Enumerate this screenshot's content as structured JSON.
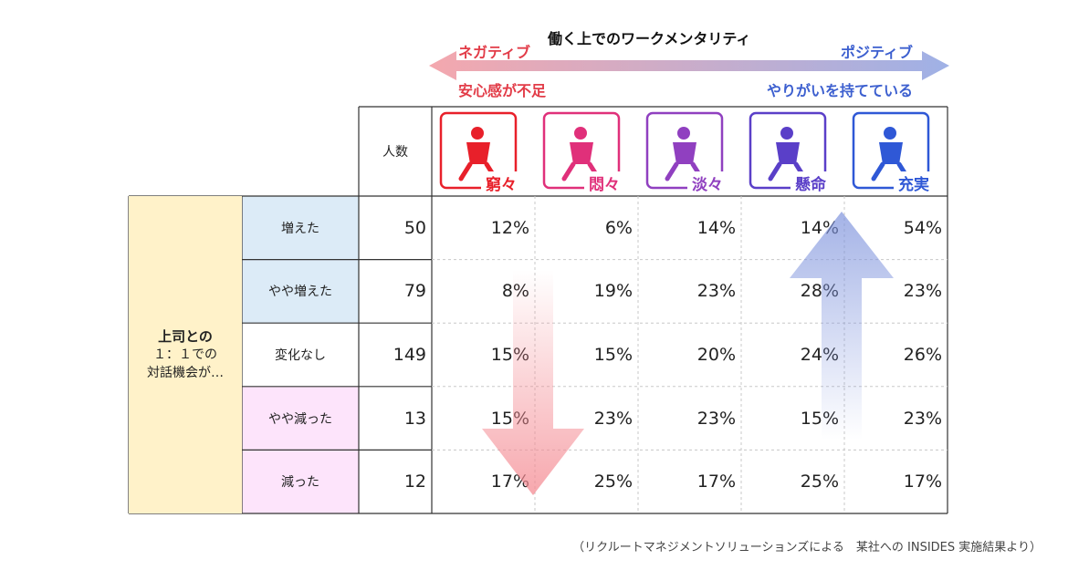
{
  "chart_data": {
    "type": "table",
    "title": "働く上でのワークメンタリティ",
    "scale": {
      "left_label": "ネガティブ",
      "left_sublabel": "安心感が不足",
      "right_label": "ポジティブ",
      "right_sublabel": "やりがいを持てている",
      "left_color": "#f4a8ae",
      "right_color": "#9fb1e6"
    },
    "count_header": "人数",
    "columns": [
      {
        "label": "窮々",
        "color": "#e8202a",
        "icon": "despair-figure-icon"
      },
      {
        "label": "悶々",
        "color": "#e0307a",
        "icon": "worried-figure-icon"
      },
      {
        "label": "淡々",
        "color": "#9040c0",
        "icon": "calm-figure-icon"
      },
      {
        "label": "懸命",
        "color": "#5a3fc8",
        "icon": "striving-figure-icon"
      },
      {
        "label": "充実",
        "color": "#2f58d6",
        "icon": "fulfilled-figure-icon"
      }
    ],
    "group_label": [
      "上司との",
      "１：１での",
      "対話機会が…"
    ],
    "rows": [
      {
        "label": "増えた",
        "bg": "#dcebf7",
        "count": "50",
        "values": [
          "12%",
          "6%",
          "14%",
          "14%",
          "54%"
        ]
      },
      {
        "label": "やや増えた",
        "bg": "#dcebf7",
        "count": "79",
        "values": [
          "8%",
          "19%",
          "23%",
          "28%",
          "23%"
        ]
      },
      {
        "label": "変化なし",
        "bg": "#ffffff",
        "count": "149",
        "values": [
          "15%",
          "15%",
          "20%",
          "24%",
          "26%"
        ]
      },
      {
        "label": "やや減った",
        "bg": "#fde4fb",
        "count": "13",
        "values": [
          "15%",
          "23%",
          "23%",
          "15%",
          "23%"
        ]
      },
      {
        "label": "減った",
        "bg": "#fde4fb",
        "count": "12",
        "values": [
          "17%",
          "25%",
          "17%",
          "25%",
          "17%"
        ]
      }
    ]
  },
  "footnote": "（リクルートマネジメントソリューションズによる　某社への INSIDES 実施結果より）"
}
